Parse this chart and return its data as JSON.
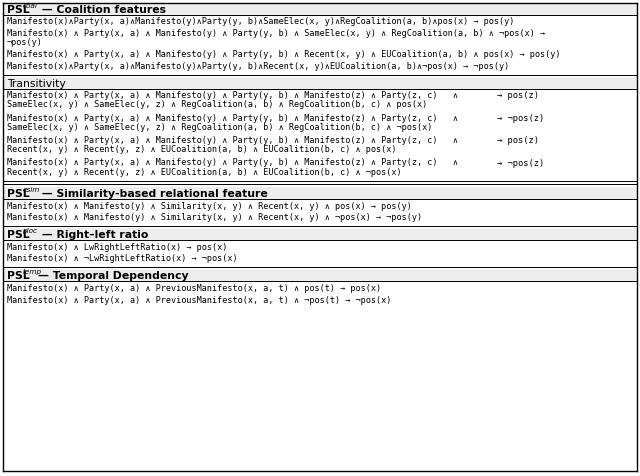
{
  "figsize": [
    6.4,
    4.76
  ],
  "dpi": 100,
  "bg_color": "#ffffff",
  "sections": [
    {
      "header": "PSL",
      "header_sub": "coal",
      "header_rest": " — Coalition features",
      "header_bold": true,
      "rows": [
        {
          "type": "formula",
          "lines": [
            "Manifesto(x)∧Party(x, a)∧Manifesto(y)∧Party(y, b)∧SameElec(x, y)∧RegCoalition(a, b)∧pos(x) → pos(y)"
          ]
        },
        {
          "type": "formula",
          "lines": [
            "Manifesto(x) ∧ Party(x, a) ∧ Manifesto(y) ∧ Party(y, b) ∧ SameElec(x, y) ∧ RegCoalition(a, b) ∧ ¬pos(x) →",
            "¬pos(y)"
          ]
        },
        {
          "type": "formula",
          "lines": [
            "Manifesto(x) ∧ Party(x, a) ∧ Manifesto(y) ∧ Party(y, b) ∧ Recent(x, y) ∧ EUCoalition(a, b) ∧ pos(x) → pos(y)"
          ]
        },
        {
          "type": "formula",
          "lines": [
            "Manifesto(x)∧Party(x, a)∧Manifesto(y)∧Party(y, b)∧Recent(x, y)∧EUCoalition(a, b)∧¬pos(x) → ¬pos(y)"
          ]
        }
      ]
    },
    {
      "header": "Transitivity",
      "header_sub": "",
      "header_rest": "",
      "header_bold": false,
      "double_line_after": true,
      "rows": [
        {
          "type": "transitivity",
          "left_lines": [
            "Manifesto(x) ∧ Party(x, a) ∧ Manifesto(y) ∧ Party(y, b) ∧ Manifesto(z) ∧ Party(z, c)   ∧",
            "SameElec(x, y) ∧ SameElec(y, z) ∧ RegCoalition(a, b) ∧ RegCoalition(b, c) ∧ pos(x)"
          ],
          "right": "→ pos(z)"
        },
        {
          "type": "transitivity",
          "left_lines": [
            "Manifesto(x) ∧ Party(x, a) ∧ Manifesto(y) ∧ Party(y, b) ∧ Manifesto(z) ∧ Party(z, c)   ∧",
            "SameElec(x, y) ∧ SameElec(y, z) ∧ RegCoalition(a, b) ∧ RegCoalition(b, c) ∧ ¬pos(x)"
          ],
          "right": "→ ¬pos(z)"
        },
        {
          "type": "transitivity",
          "left_lines": [
            "Manifesto(x) ∧ Party(x, a) ∧ Manifesto(y) ∧ Party(y, b) ∧ Manifesto(z) ∧ Party(z, c)   ∧",
            "Recent(x, y) ∧ Recent(y, z) ∧ EUCoalition(a, b) ∧ EUCoalition(b, c) ∧ pos(x)"
          ],
          "right": "→ pos(z)"
        },
        {
          "type": "transitivity",
          "left_lines": [
            "Manifesto(x) ∧ Party(x, a) ∧ Manifesto(y) ∧ Party(y, b) ∧ Manifesto(z) ∧ Party(z, c)   ∧",
            "Recent(x, y) ∧ Recent(y, z) ∧ EUCoalition(a, b) ∧ EUCoalition(b, c) ∧ ¬pos(x)"
          ],
          "right": "→ ¬pos(z)"
        }
      ]
    },
    {
      "header": "PSL",
      "header_sub": "esim",
      "header_rest": " — Similarity-based relational feature",
      "header_bold": true,
      "double_line_after": false,
      "rows": [
        {
          "type": "formula",
          "lines": [
            "Manifesto(x) ∧ Manifesto(y) ∧ Similarity(x, y) ∧ Recent(x, y) ∧ pos(x) → pos(y)"
          ]
        },
        {
          "type": "formula",
          "lines": [
            "Manifesto(x) ∧ Manifesto(y) ∧ Similarity(x, y) ∧ Recent(x, y) ∧ ¬pos(x) → ¬pos(y)"
          ]
        }
      ]
    },
    {
      "header": "PSL",
      "header_sub": "ploc",
      "header_rest": " — Right–left ratio",
      "header_bold": true,
      "double_line_after": false,
      "rows": [
        {
          "type": "formula",
          "lines": [
            "Manifesto(x) ∧ LwRightLeftRatio(x) → pos(x)"
          ]
        },
        {
          "type": "formula",
          "lines": [
            "Manifesto(x) ∧ ¬LwRightLeftRatio(x) → ¬pos(x)"
          ]
        }
      ]
    },
    {
      "header": "PSL",
      "header_sub": "temp",
      "header_rest": "— Temporal Dependency",
      "header_bold": true,
      "double_line_after": false,
      "rows": [
        {
          "type": "formula",
          "lines": [
            "Manifesto(x) ∧ Party(x, a) ∧ PreviousManifesto(x, a, t) ∧ pos(t) → pos(x)"
          ]
        },
        {
          "type": "formula",
          "lines": [
            "Manifesto(x) ∧ Party(x, a) ∧ PreviousManifesto(x, a, t) ∧ ¬pos(t) → ¬pos(x)"
          ]
        }
      ]
    }
  ]
}
